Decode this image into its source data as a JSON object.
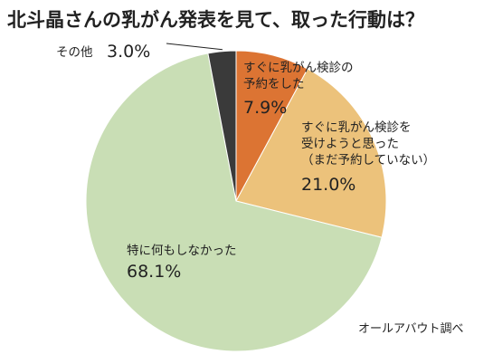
{
  "title": "北斗晶さんの乳がん発表を見て、取った行動は？",
  "source": "オールアバウト調べ",
  "chart_data": {
    "type": "pie",
    "title": "北斗晶さんの乳がん発表を見て、取った行動は？",
    "slices": [
      {
        "label": [
          "すぐに乳がん検診の",
          "予約をした"
        ],
        "value": 7.9,
        "value_label": "7.9%",
        "color": "#dc7433"
      },
      {
        "label": [
          "すぐに乳がん検診を",
          "受けようと思った",
          "（まだ予約していない）"
        ],
        "value": 21.0,
        "value_label": "21.0%",
        "color": "#ecc27b"
      },
      {
        "label": [
          "特に何もしなかった"
        ],
        "value": 68.1,
        "value_label": "68.1%",
        "color": "#c9deb5"
      },
      {
        "label": [
          "その他"
        ],
        "value": 3.0,
        "value_label": "3.0%",
        "color": "#3a3a3a"
      }
    ],
    "start_angle_deg": 0,
    "direction": "clockwise",
    "legend": "none"
  }
}
